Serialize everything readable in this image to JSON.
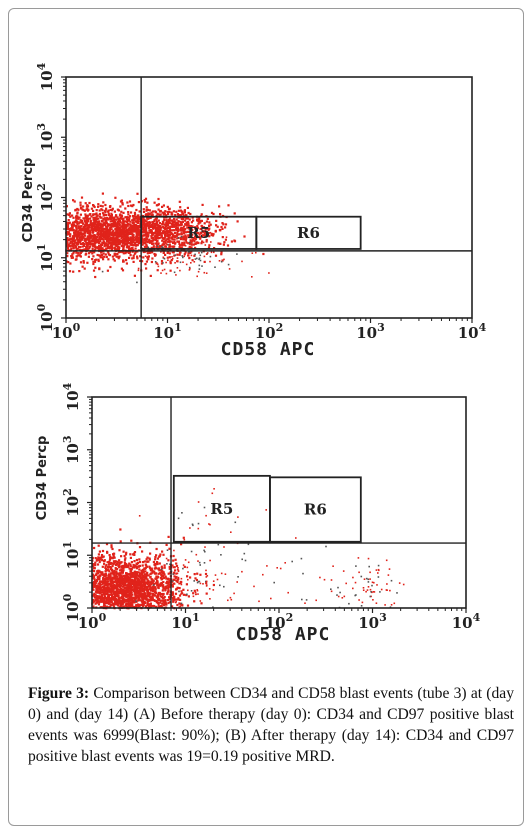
{
  "caption": {
    "label": "Figure 3:",
    "text": "Comparison between CD34 and CD58 blast events (tube 3) at (day 0) and (day 14) (A) Before therapy (day 0): CD34 and CD97 positive blast events was 6999(Blast: 90%); (B) After therapy (day 14): CD34 and CD97 positive blast events was 19=0.19 positive MRD."
  },
  "colors": {
    "events": "#e0231b",
    "axis": "#222222",
    "frame": "#9a9a9a"
  },
  "chart_data": [
    {
      "type": "scatter",
      "xlabel": "CD58 APC",
      "ylabel": "CD34 Percp",
      "xscale": "log",
      "yscale": "log",
      "xlim": [
        1,
        10000
      ],
      "ylim": [
        1,
        10000
      ],
      "xticks": [
        "10",
        "10",
        "10",
        "10",
        "10"
      ],
      "xtick_exp": [
        "0",
        "1",
        "2",
        "3",
        "4"
      ],
      "yticks": [
        "10",
        "10",
        "10",
        "10",
        "10"
      ],
      "ytick_exp": [
        "0",
        "1",
        "2",
        "3",
        "4"
      ],
      "regions": [
        {
          "name": "R5",
          "x": [
            5.5,
            75
          ],
          "y": [
            14,
            48
          ]
        },
        {
          "name": "R6",
          "x": [
            75,
            800
          ],
          "y": [
            14,
            48
          ]
        }
      ],
      "gates": {
        "x": 5.5,
        "y": 13
      },
      "populations": [
        {
          "center": [
            2.2,
            25
          ],
          "spread": [
            0.38,
            0.22
          ],
          "count": 1900
        },
        {
          "center": [
            9,
            28
          ],
          "spread": [
            0.3,
            0.2
          ],
          "count": 700
        },
        {
          "center": [
            14,
            10
          ],
          "spread": [
            0.3,
            0.2
          ],
          "count": 120
        }
      ]
    },
    {
      "type": "scatter",
      "xlabel": "CD58 APC",
      "ylabel": "CD34 Percp",
      "xscale": "log",
      "yscale": "log",
      "xlim": [
        1,
        10000
      ],
      "ylim": [
        1,
        10000
      ],
      "xticks": [
        "10",
        "10",
        "10",
        "10",
        "10"
      ],
      "xtick_exp": [
        "0",
        "1",
        "2",
        "3",
        "4"
      ],
      "yticks": [
        "10",
        "10",
        "10",
        "10",
        "10"
      ],
      "ytick_exp": [
        "0",
        "1",
        "2",
        "3",
        "4"
      ],
      "regions": [
        {
          "name": "R5",
          "x": [
            7.5,
            80
          ],
          "y": [
            18,
            320
          ]
        },
        {
          "name": "R6",
          "x": [
            80,
            750
          ],
          "y": [
            18,
            300
          ]
        }
      ],
      "gates": {
        "x": 7,
        "y": 17
      },
      "populations": [
        {
          "center": [
            2.2,
            2.2
          ],
          "spread": [
            0.3,
            0.32
          ],
          "count": 2200
        },
        {
          "center": [
            11,
            3
          ],
          "spread": [
            0.25,
            0.35
          ],
          "count": 80
        },
        {
          "center": [
            900,
            1.8
          ],
          "spread": [
            0.18,
            0.3
          ],
          "count": 90
        },
        {
          "center": [
            60,
            4
          ],
          "spread": [
            0.5,
            0.4
          ],
          "count": 60
        },
        {
          "center": [
            20,
            60
          ],
          "spread": [
            0.3,
            0.3
          ],
          "count": 19
        }
      ]
    }
  ]
}
